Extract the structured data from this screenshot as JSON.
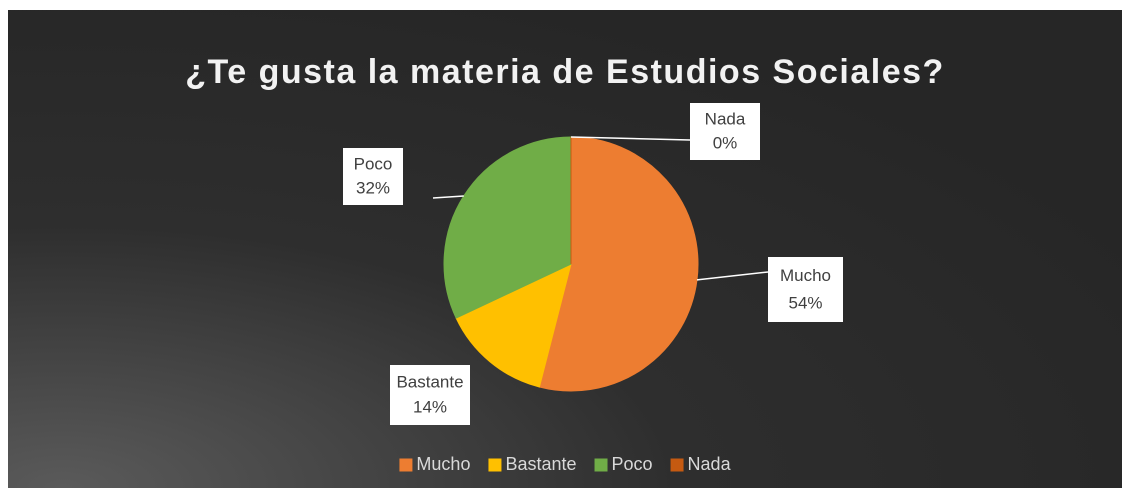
{
  "chart_data": {
    "type": "pie",
    "title": "¿Te gusta la materia de Estudios Sociales?",
    "categories": [
      "Mucho",
      "Bastante",
      "Poco",
      "Nada"
    ],
    "values": [
      54,
      14,
      32,
      0
    ],
    "value_labels": [
      "54%",
      "14%",
      "32%",
      "0%"
    ],
    "colors": [
      "#ED7D31",
      "#FFC000",
      "#70AD47",
      "#C55A11"
    ],
    "legend": "bottom"
  }
}
